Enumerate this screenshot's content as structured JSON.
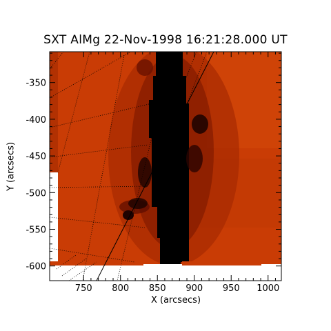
{
  "title": "SXT AlMg 22-Nov-1998 16:21:28.000 UT",
  "xlabel": "X (arcsecs)",
  "ylabel": "Y (arcsecs)",
  "x_ticks": [
    "750",
    "800",
    "850",
    "900",
    "950",
    "1000"
  ],
  "y_ticks": [
    "-350",
    "-400",
    "-450",
    "-500",
    "-550",
    "-600"
  ],
  "axes": {
    "x_range": [
      704,
      1018
    ],
    "y_range": [
      -620,
      -308
    ]
  },
  "colors": {
    "background": "#ffffff",
    "corona_bright": "#c63a05",
    "corona_mid": "#a92a02",
    "corona_dark": "#5a0c00",
    "saturated_column": "#000000"
  }
}
